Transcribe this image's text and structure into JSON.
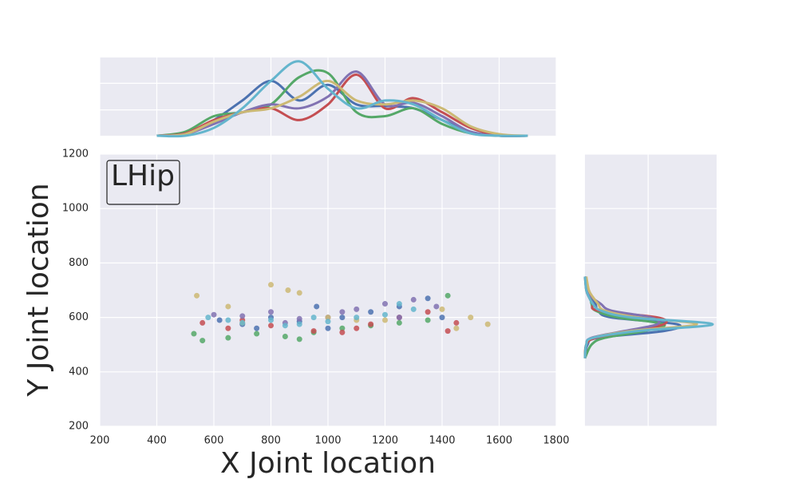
{
  "chart_data": {
    "type": "scatter",
    "annotation": "LHip",
    "xlabel": "X Joint location",
    "ylabel": "Y Joint location",
    "xlim": [
      200,
      1800
    ],
    "ylim": [
      200,
      1200
    ],
    "xticks": [
      200,
      400,
      600,
      800,
      1000,
      1200,
      1400,
      1600,
      1800
    ],
    "yticks": [
      200,
      400,
      600,
      800,
      1000,
      1200
    ],
    "grid": true,
    "series": [
      {
        "color": "#4c72b0",
        "x": [
          620,
          700,
          800,
          900,
          960,
          1050,
          1150,
          1250,
          1350,
          1400,
          1000,
          750
        ],
        "y": [
          590,
          575,
          600,
          585,
          640,
          600,
          620,
          640,
          670,
          600,
          560,
          560
        ]
      },
      {
        "color": "#55a868",
        "x": [
          530,
          560,
          650,
          750,
          850,
          950,
          1050,
          1150,
          1250,
          1350,
          1420,
          900
        ],
        "y": [
          540,
          515,
          525,
          540,
          530,
          545,
          560,
          570,
          580,
          590,
          680,
          520
        ]
      },
      {
        "color": "#c44e52",
        "x": [
          560,
          650,
          800,
          950,
          1050,
          1150,
          1250,
          1350,
          1420,
          1450,
          1100,
          700
        ],
        "y": [
          580,
          560,
          570,
          550,
          545,
          575,
          600,
          620,
          550,
          580,
          560,
          590
        ]
      },
      {
        "color": "#8172b2",
        "x": [
          600,
          700,
          800,
          900,
          1000,
          1100,
          1200,
          1300,
          1380,
          1250,
          850,
          1050
        ],
        "y": [
          610,
          605,
          620,
          595,
          600,
          630,
          650,
          665,
          640,
          600,
          580,
          620
        ]
      },
      {
        "color": "#ccb974",
        "x": [
          540,
          650,
          800,
          860,
          900,
          1000,
          1200,
          1400,
          1500,
          1560,
          1450,
          1100,
          700
        ],
        "y": [
          680,
          640,
          720,
          700,
          690,
          600,
          590,
          630,
          600,
          575,
          560,
          590,
          580
        ]
      },
      {
        "color": "#64b5cd",
        "x": [
          580,
          700,
          800,
          900,
          1000,
          1100,
          1200,
          1300,
          1250,
          950,
          850,
          650
        ],
        "y": [
          600,
          580,
          590,
          575,
          585,
          600,
          610,
          630,
          650,
          600,
          570,
          590
        ]
      }
    ],
    "marginal_x": {
      "ylim": [
        0,
        1
      ],
      "yticks": [
        0.33,
        0.67
      ],
      "x": [
        400,
        500,
        600,
        700,
        800,
        900,
        1000,
        1100,
        1200,
        1300,
        1400,
        1500,
        1600,
        1700
      ],
      "series": [
        {
          "color": "#4c72b0",
          "values": [
            0,
            0.02,
            0.2,
            0.45,
            0.7,
            0.45,
            0.65,
            0.4,
            0.38,
            0.35,
            0.2,
            0.05,
            0,
            0
          ]
        },
        {
          "color": "#55a868",
          "values": [
            0,
            0.05,
            0.25,
            0.3,
            0.4,
            0.75,
            0.8,
            0.3,
            0.25,
            0.35,
            0.15,
            0.03,
            0,
            0
          ]
        },
        {
          "color": "#c44e52",
          "values": [
            0,
            0.03,
            0.2,
            0.3,
            0.35,
            0.2,
            0.4,
            0.78,
            0.35,
            0.48,
            0.3,
            0.1,
            0.01,
            0
          ]
        },
        {
          "color": "#8172b2",
          "values": [
            0,
            0.02,
            0.15,
            0.3,
            0.4,
            0.35,
            0.5,
            0.82,
            0.4,
            0.42,
            0.25,
            0.05,
            0,
            0
          ]
        },
        {
          "color": "#ccb974",
          "values": [
            0,
            0.02,
            0.18,
            0.3,
            0.35,
            0.5,
            0.7,
            0.45,
            0.4,
            0.45,
            0.35,
            0.12,
            0.02,
            0
          ]
        },
        {
          "color": "#64b5cd",
          "values": [
            0,
            0,
            0.1,
            0.35,
            0.7,
            0.95,
            0.6,
            0.35,
            0.45,
            0.4,
            0.2,
            0.03,
            0,
            0
          ]
        }
      ]
    },
    "marginal_y": {
      "xlim": [
        0,
        1
      ],
      "xticks": [
        0.48
      ],
      "y": [
        450,
        500,
        525,
        550,
        575,
        600,
        625,
        650,
        675,
        700,
        750
      ],
      "series": [
        {
          "color": "#4c72b0",
          "values": [
            0,
            0.02,
            0.1,
            0.6,
            0.7,
            0.2,
            0.1,
            0.08,
            0.05,
            0.02,
            0
          ]
        },
        {
          "color": "#55a868",
          "values": [
            0,
            0.05,
            0.15,
            0.45,
            0.6,
            0.25,
            0.08,
            0.05,
            0.04,
            0.02,
            0
          ]
        },
        {
          "color": "#c44e52",
          "values": [
            0,
            0.01,
            0.08,
            0.35,
            0.6,
            0.55,
            0.1,
            0.06,
            0.03,
            0.01,
            0
          ]
        },
        {
          "color": "#8172b2",
          "values": [
            0,
            0.01,
            0.05,
            0.3,
            0.55,
            0.5,
            0.2,
            0.12,
            0.05,
            0.02,
            0
          ]
        },
        {
          "color": "#ccb974",
          "values": [
            0,
            0.01,
            0.06,
            0.35,
            0.85,
            0.4,
            0.15,
            0.1,
            0.06,
            0.03,
            0.01
          ]
        },
        {
          "color": "#64b5cd",
          "values": [
            0,
            0.01,
            0.06,
            0.4,
            0.97,
            0.35,
            0.12,
            0.06,
            0.03,
            0.01,
            0
          ]
        }
      ]
    }
  }
}
